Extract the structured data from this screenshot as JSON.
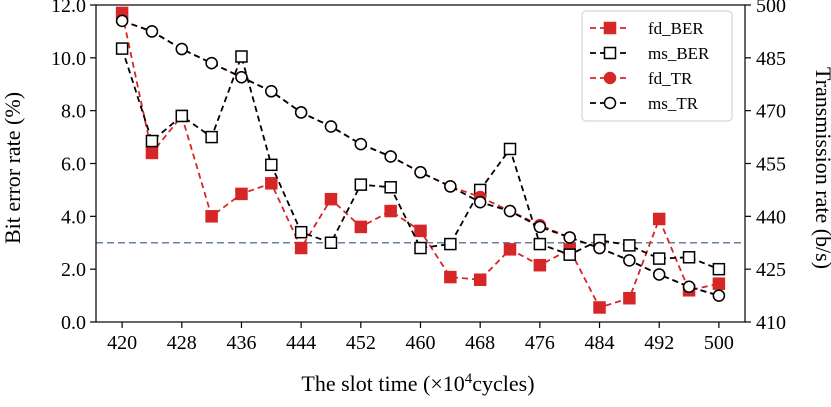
{
  "chart_data": {
    "type": "line",
    "xlabel_prefix": "The slot time (",
    "xlabel_mult": "×10",
    "xlabel_exp": "4",
    "xlabel_suffix": "cycles)",
    "ylabel": "Bit error rate (%)",
    "y2label": "Transmission rate (b/s)",
    "xlim": [
      416.5,
      503.5
    ],
    "ylim": [
      0.0,
      12.0
    ],
    "y2lim": [
      410.0,
      500.0
    ],
    "xticks": [
      420,
      428,
      436,
      444,
      452,
      460,
      468,
      476,
      484,
      492,
      500
    ],
    "yticks": [
      "0.0",
      "2.0",
      "4.0",
      "6.0",
      "8.0",
      "10.0",
      "12.0"
    ],
    "y2ticks": [
      410,
      425,
      440,
      455,
      470,
      485,
      500
    ],
    "x": [
      420,
      424,
      428,
      432,
      436,
      440,
      444,
      448,
      452,
      456,
      460,
      464,
      468,
      472,
      476,
      480,
      484,
      488,
      492,
      496,
      500
    ],
    "reference_line": {
      "y": 3.0,
      "color": "#6b7fa3"
    },
    "series": [
      {
        "name": "fd_BER",
        "axis": "left",
        "marker": "square-filled",
        "color": "#d62728",
        "linestyle": "dashed",
        "values": [
          11.7,
          6.4,
          7.8,
          4.0,
          4.85,
          5.25,
          2.8,
          4.65,
          3.6,
          4.2,
          3.45,
          1.7,
          1.6,
          2.75,
          2.15,
          2.75,
          0.55,
          0.9,
          3.9,
          1.2,
          1.45
        ]
      },
      {
        "name": "ms_BER",
        "axis": "left",
        "marker": "square-open",
        "color": "#000000",
        "linestyle": "dashed",
        "values": [
          10.35,
          6.85,
          7.8,
          7.0,
          10.05,
          5.95,
          3.4,
          3.0,
          5.2,
          5.1,
          2.8,
          2.95,
          5.0,
          6.55,
          2.95,
          2.55,
          3.1,
          2.9,
          2.4,
          2.45,
          2.0
        ]
      },
      {
        "name": "fd_TR",
        "axis": "right",
        "marker": "circle-filled",
        "color": "#d62728",
        "linestyle": "dashed",
        "values": [
          495.5,
          492.5,
          487.5,
          483.5,
          479.5,
          475.5,
          469.5,
          465.5,
          460.5,
          457.0,
          452.5,
          448.5,
          445.5,
          441.5,
          437.5,
          434.0,
          431.0,
          427.5,
          423.5,
          420.0,
          417.5
        ]
      },
      {
        "name": "ms_TR",
        "axis": "right",
        "marker": "circle-open",
        "color": "#000000",
        "linestyle": "dashed",
        "values": [
          495.5,
          492.5,
          487.5,
          483.5,
          479.5,
          475.5,
          469.5,
          465.5,
          460.5,
          457.0,
          452.5,
          448.5,
          444.0,
          441.5,
          437.0,
          434.0,
          431.0,
          427.5,
          423.5,
          420.0,
          417.5
        ]
      }
    ],
    "legend_position": "top-right"
  }
}
